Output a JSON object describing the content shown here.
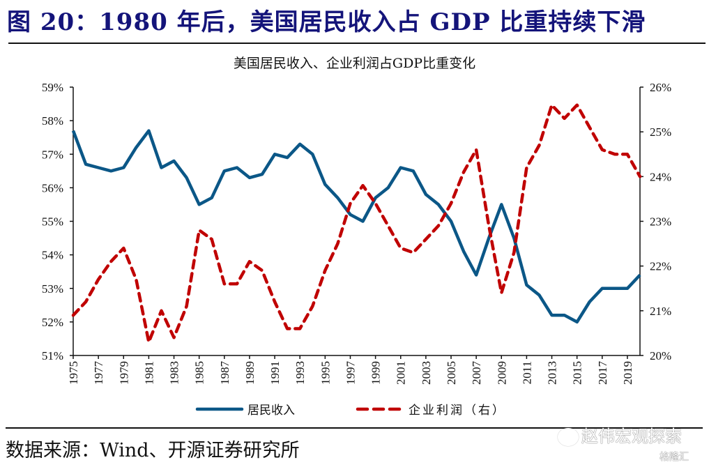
{
  "figure": {
    "title": "图 20：1980 年后，美国居民收入占 GDP 比重持续下滑",
    "source": "数据来源：Wind、开源证券研究所",
    "watermark": "赵伟宏观探索",
    "watermark_secondary": "格隆汇",
    "colors": {
      "title": "#14147a",
      "household": "#0b5787",
      "corporate": "#c00000"
    }
  },
  "chart_data": {
    "type": "line",
    "title": "美国居民收入、企业利润占GDP比重变化",
    "xlabel": "",
    "ylabel": "",
    "y2label": "",
    "x": [
      1975,
      1976,
      1977,
      1978,
      1979,
      1980,
      1981,
      1982,
      1983,
      1984,
      1985,
      1986,
      1987,
      1988,
      1989,
      1990,
      1991,
      1992,
      1993,
      1994,
      1995,
      1996,
      1997,
      1998,
      1999,
      2000,
      2001,
      2002,
      2003,
      2004,
      2005,
      2006,
      2007,
      2008,
      2009,
      2010,
      2011,
      2012,
      2013,
      2014,
      2015,
      2016,
      2017,
      2018,
      2019,
      2020
    ],
    "x_tick_labels": [
      "1975",
      "1977",
      "1979",
      "1981",
      "1983",
      "1985",
      "1987",
      "1989",
      "1991",
      "1993",
      "1995",
      "1997",
      "1999",
      "2001",
      "2003",
      "2005",
      "2007",
      "2009",
      "2011",
      "2013",
      "2015",
      "2017",
      "2019"
    ],
    "ylim": [
      51,
      59
    ],
    "y_tick_labels": [
      "51%",
      "52%",
      "53%",
      "54%",
      "55%",
      "56%",
      "57%",
      "58%",
      "59%"
    ],
    "y2lim": [
      20,
      26
    ],
    "y2_tick_labels": [
      "20%",
      "21%",
      "22%",
      "23%",
      "24%",
      "25%",
      "26%"
    ],
    "grid": false,
    "legend_position": "bottom-center",
    "series": [
      {
        "name": "居民收入",
        "axis": "left",
        "style": "solid",
        "color": "#0b5787",
        "values": [
          57.7,
          56.7,
          56.6,
          56.5,
          56.6,
          57.2,
          57.7,
          56.6,
          56.8,
          56.3,
          55.5,
          55.7,
          56.5,
          56.6,
          56.3,
          56.4,
          57.0,
          56.9,
          57.3,
          57.0,
          56.1,
          55.7,
          55.2,
          55.0,
          55.7,
          56.0,
          56.6,
          56.5,
          55.8,
          55.5,
          55.0,
          54.1,
          53.4,
          54.5,
          55.5,
          54.5,
          53.1,
          52.8,
          52.2,
          52.2,
          52.0,
          52.6,
          53.0,
          53.0,
          53.0,
          53.4
        ]
      },
      {
        "name": "企业利润（右）",
        "axis": "right",
        "style": "dashed",
        "color": "#c00000",
        "values": [
          20.9,
          21.2,
          21.7,
          22.1,
          22.4,
          21.7,
          20.3,
          21.0,
          20.4,
          21.1,
          22.8,
          22.6,
          21.6,
          21.6,
          22.1,
          21.9,
          21.2,
          20.6,
          20.6,
          21.1,
          21.9,
          22.5,
          23.4,
          23.8,
          23.4,
          22.9,
          22.4,
          22.3,
          22.6,
          22.9,
          23.4,
          24.1,
          24.6,
          22.9,
          21.4,
          22.3,
          24.2,
          24.7,
          25.6,
          25.3,
          25.6,
          25.1,
          24.6,
          24.5,
          24.5,
          24.0
        ]
      }
    ]
  }
}
